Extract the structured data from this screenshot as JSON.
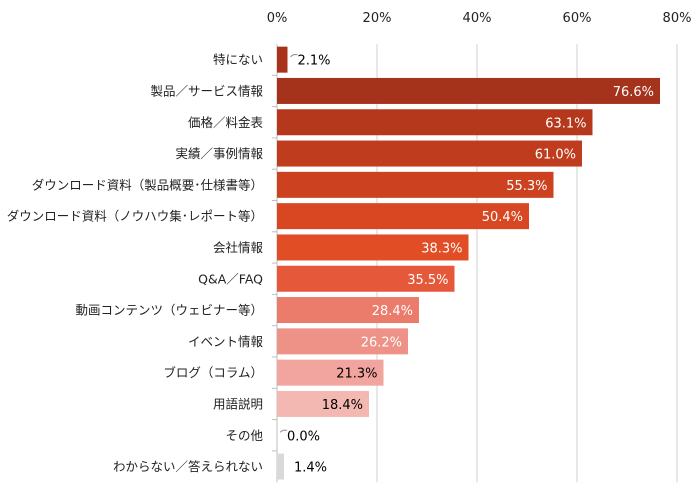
{
  "chart_data": {
    "type": "bar",
    "orientation": "horizontal",
    "categories": [
      "特にない",
      "製品／サービス情報",
      "価格／料金表",
      "実績／事例情報",
      "ダウンロード資料（製品概要･仕様書等）",
      "ダウンロード資料（ノウハウ集･レポート等）",
      "会社情報",
      "Q&A／FAQ",
      "動画コンテンツ（ウェビナー等）",
      "イベント情報",
      "ブログ（コラム）",
      "用語説明",
      "その他",
      "わからない／答えられない"
    ],
    "values": [
      2.1,
      76.6,
      63.1,
      61.0,
      55.3,
      50.4,
      38.3,
      35.5,
      28.4,
      26.2,
      21.3,
      18.4,
      0.0,
      1.4
    ],
    "data_labels": [
      "2.1%",
      "76.6%",
      "63.1%",
      "61.0%",
      "55.3%",
      "50.4%",
      "38.3%",
      "35.5%",
      "28.4%",
      "26.2%",
      "21.3%",
      "18.4%",
      "0.0%",
      "1.4%"
    ],
    "colors": [
      "#a8331a",
      "#a5321a",
      "#b5381c",
      "#bf3c1e",
      "#cc4120",
      "#d84722",
      "#e14d24",
      "#e6583a",
      "#eb7c6c",
      "#ee9186",
      "#f2a59e",
      "#f4b8b2",
      "#f4b8b2",
      "#d9d9d9"
    ],
    "label_colors": [
      "#000",
      "#fff",
      "#fff",
      "#fff",
      "#fff",
      "#fff",
      "#fff",
      "#fff",
      "#fff",
      "#fff",
      "#000",
      "#000",
      "#000",
      "#000"
    ],
    "xlim": [
      0,
      80
    ],
    "x_ticks": [
      "0%",
      "20%",
      "40%",
      "60%",
      "80%"
    ],
    "x_axis_position": "top",
    "grid": true,
    "title": "",
    "xlabel": "",
    "ylabel": ""
  }
}
